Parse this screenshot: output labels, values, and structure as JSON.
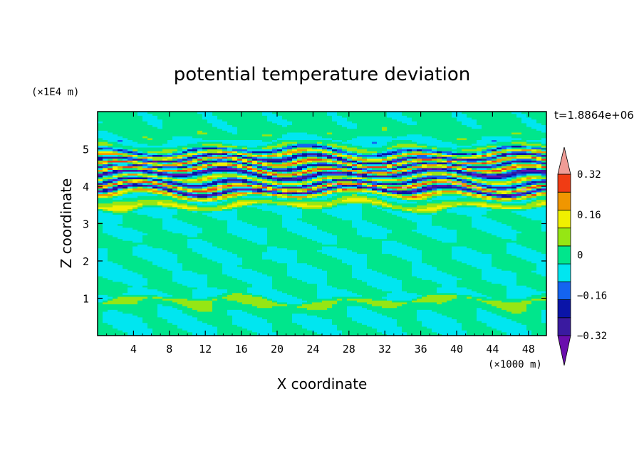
{
  "chart_data": {
    "type": "heatmap",
    "title": "potential temperature deviation",
    "xlabel": "X coordinate",
    "ylabel": "Z coordinate",
    "x_unit": "(×1000 m)",
    "y_unit": "(×1E4 m)",
    "time_label": "t=1.8864e+06",
    "xlim": [
      0,
      50
    ],
    "ylim": [
      0,
      6
    ],
    "x_ticks": [
      4,
      8,
      12,
      16,
      20,
      24,
      28,
      32,
      36,
      40,
      44,
      48
    ],
    "y_ticks": [
      1,
      2,
      3,
      4,
      5
    ],
    "x_tick_labels": [
      "4",
      "8",
      "12",
      "16",
      "20",
      "24",
      "28",
      "32",
      "36",
      "40",
      "44",
      "48"
    ],
    "y_tick_labels": [
      "1",
      "2",
      "3",
      "4",
      "5"
    ],
    "colorbar": {
      "levels": [
        -0.4,
        -0.32,
        -0.24,
        -0.16,
        -0.08,
        0,
        0.08,
        0.16,
        0.24,
        0.32,
        0.4
      ],
      "tick_values": [
        0.32,
        0.16,
        0,
        -0.16,
        -0.32
      ],
      "tick_labels": [
        "0.32",
        "0.16",
        "0",
        "−0.16",
        "−0.32"
      ],
      "colors": [
        "#6a0dad",
        "#3a1aa0",
        "#0a14a8",
        "#1464f0",
        "#00e6f0",
        "#00e68c",
        "#96e614",
        "#f0f000",
        "#f09600",
        "#f03c14",
        "#f09c96"
      ],
      "extend": "both"
    },
    "bands": [
      {
        "z": 0.0,
        "v": 0.02
      },
      {
        "z": 0.4,
        "v": -0.02
      },
      {
        "z": 0.7,
        "v": 0.03
      },
      {
        "z": 0.95,
        "v": 0.12
      },
      {
        "z": 1.05,
        "v": -0.03
      },
      {
        "z": 1.3,
        "v": 0.03
      },
      {
        "z": 1.6,
        "v": -0.02
      },
      {
        "z": 1.9,
        "v": 0.03
      },
      {
        "z": 2.2,
        "v": -0.02
      },
      {
        "z": 2.5,
        "v": 0.04
      },
      {
        "z": 2.8,
        "v": -0.02
      },
      {
        "z": 3.1,
        "v": 0.03
      },
      {
        "z": 3.4,
        "v": -0.03
      },
      {
        "z": 3.5,
        "v": 0.2
      },
      {
        "z": 3.7,
        "v": -0.04
      },
      {
        "z": 3.8,
        "v": 0.3
      },
      {
        "z": 3.9,
        "v": -0.38
      },
      {
        "z": 4.0,
        "v": 0.4
      },
      {
        "z": 4.1,
        "v": -0.3
      },
      {
        "z": 4.2,
        "v": 0.25
      },
      {
        "z": 4.35,
        "v": -0.36
      },
      {
        "z": 4.45,
        "v": 0.38
      },
      {
        "z": 4.55,
        "v": -0.28
      },
      {
        "z": 4.65,
        "v": 0.36
      },
      {
        "z": 4.75,
        "v": -0.34
      },
      {
        "z": 4.85,
        "v": 0.3
      },
      {
        "z": 4.95,
        "v": -0.2
      },
      {
        "z": 5.05,
        "v": 0.12
      },
      {
        "z": 5.2,
        "v": -0.05
      },
      {
        "z": 5.4,
        "v": 0.05
      },
      {
        "z": 5.7,
        "v": 0.02
      },
      {
        "z": 6.0,
        "v": 0.03
      }
    ]
  }
}
